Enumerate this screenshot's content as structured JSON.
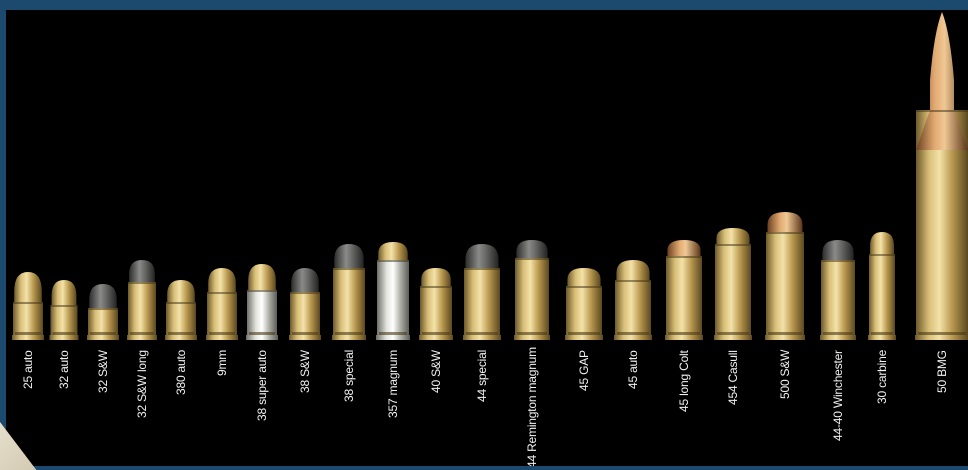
{
  "cartridges": [
    {
      "label": "25 auto"
    },
    {
      "label": "32 auto"
    },
    {
      "label": "32 S&W"
    },
    {
      "label": "32 S&W long"
    },
    {
      "label": "380 auto"
    },
    {
      "label": "9mm"
    },
    {
      "label": "38 super auto"
    },
    {
      "label": "38 S&W"
    },
    {
      "label": "38 special"
    },
    {
      "label": "357 magnum"
    },
    {
      "label": "40 S&W"
    },
    {
      "label": "44 special"
    },
    {
      "label": "44 Remington magnum"
    },
    {
      "label": "45 GAP"
    },
    {
      "label": "45 auto"
    },
    {
      "label": "45 long Colt"
    },
    {
      "label": "454 Casull"
    },
    {
      "label": "500 S&W"
    },
    {
      "label": "44-40 Winchester"
    },
    {
      "label": "30 carbine"
    },
    {
      "label": "50 BMG"
    }
  ],
  "colors": {
    "background": "#000000",
    "frame": "#1c4a6e",
    "brass": "#c9a85c",
    "nickel": "#c8c8c0",
    "lead": "#6a6a6a",
    "copper": "#c48a52"
  }
}
